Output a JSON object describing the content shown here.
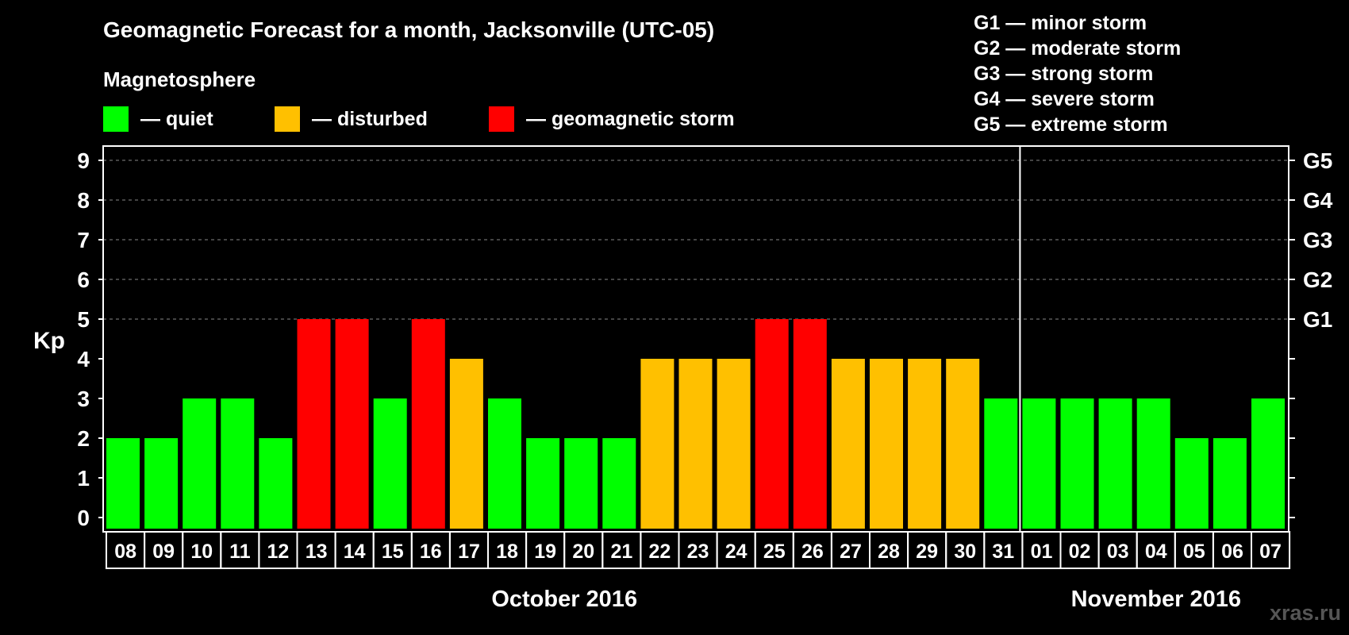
{
  "chart_data": {
    "type": "bar",
    "title": "Geomagnetic Forecast for a month, Jacksonville (UTC-05)",
    "legend_title": "Magnetosphere",
    "legend": [
      {
        "key": "quiet",
        "label": "— quiet",
        "color": "#00ff00"
      },
      {
        "key": "disturbed",
        "label": "— disturbed",
        "color": "#ffc000"
      },
      {
        "key": "storm",
        "label": "— geomagnetic storm",
        "color": "#ff0000"
      }
    ],
    "storm_scale": [
      "G1 — minor storm",
      "G2 — moderate storm",
      "G3 — strong storm",
      "G4 — severe storm",
      "G5 — extreme storm"
    ],
    "ylabel": "Kp",
    "ylim": [
      0,
      9
    ],
    "yticks": [
      "0",
      "1",
      "2",
      "3",
      "4",
      "5",
      "6",
      "7",
      "8",
      "9"
    ],
    "right_tick_labels": [
      {
        "kp": 5,
        "label": "G1"
      },
      {
        "kp": 6,
        "label": "G2"
      },
      {
        "kp": 7,
        "label": "G3"
      },
      {
        "kp": 8,
        "label": "G4"
      },
      {
        "kp": 9,
        "label": "G5"
      }
    ],
    "grid": "dashed horizontal lines at Kp 5–9",
    "categories": [
      "08",
      "09",
      "10",
      "11",
      "12",
      "13",
      "14",
      "15",
      "16",
      "17",
      "18",
      "19",
      "20",
      "21",
      "22",
      "23",
      "24",
      "25",
      "26",
      "27",
      "28",
      "29",
      "30",
      "31",
      "01",
      "02",
      "03",
      "04",
      "05",
      "06",
      "07"
    ],
    "values": [
      2,
      2,
      3,
      3,
      2,
      5,
      5,
      3,
      5,
      4,
      3,
      2,
      2,
      2,
      4,
      4,
      4,
      5,
      5,
      4,
      4,
      4,
      4,
      3,
      3,
      3,
      3,
      3,
      2,
      2,
      3
    ],
    "month_labels": [
      {
        "label": "October 2016",
        "first_index": 0,
        "last_index": 23
      },
      {
        "label": "November 2016",
        "first_index": 24,
        "last_index": 30
      }
    ]
  },
  "watermark": "xras.ru"
}
